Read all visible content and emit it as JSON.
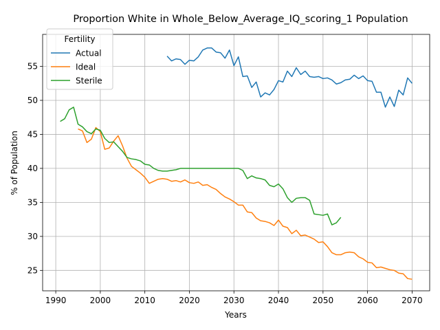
{
  "chart_data": {
    "type": "line",
    "title": "Proportion White in Whole_Below_Average_IQ_scoring_1 Population",
    "xlabel": "Years",
    "ylabel": "% of Population",
    "xlim": [
      1987.05,
      2073.95
    ],
    "ylim": [
      22.0,
      59.7
    ],
    "xticks": [
      1990,
      2000,
      2010,
      2020,
      2030,
      2040,
      2050,
      2060,
      2070
    ],
    "yticks": [
      25,
      30,
      35,
      40,
      45,
      50,
      55
    ],
    "grid": true,
    "legend": {
      "title": "Fertility",
      "placement": "top-left"
    },
    "series": [
      {
        "name": "Actual",
        "color": "#1f77b4",
        "x": [
          2015,
          2016,
          2017,
          2018,
          2019,
          2020,
          2021,
          2022,
          2023,
          2024,
          2025,
          2026,
          2027,
          2028,
          2029,
          2030,
          2031,
          2032,
          2033,
          2034,
          2035,
          2036,
          2037,
          2038,
          2039,
          2040,
          2041,
          2042,
          2043,
          2044,
          2045,
          2046,
          2047,
          2048,
          2049,
          2050,
          2051,
          2052,
          2053,
          2054,
          2055,
          2056,
          2057,
          2058,
          2059,
          2060,
          2061,
          2062,
          2063,
          2064,
          2065,
          2066,
          2067,
          2068,
          2069,
          2070
        ],
        "y": [
          56.5,
          55.8,
          56.1,
          56.0,
          55.3,
          55.9,
          55.8,
          56.4,
          57.4,
          57.7,
          57.7,
          57.1,
          57.0,
          56.2,
          57.4,
          55.1,
          56.4,
          53.5,
          53.6,
          51.9,
          52.7,
          50.5,
          51.1,
          50.8,
          51.6,
          52.9,
          52.7,
          54.3,
          53.5,
          54.8,
          53.8,
          54.3,
          53.5,
          53.4,
          53.5,
          53.2,
          53.3,
          53.0,
          52.4,
          52.6,
          53.0,
          53.1,
          53.7,
          53.2,
          53.6,
          52.9,
          52.8,
          51.2,
          51.2,
          49.0,
          50.5,
          49.1,
          51.5,
          50.8,
          53.3,
          52.5
        ]
      },
      {
        "name": "Ideal",
        "color": "#ff7f0e",
        "x": [
          1995,
          1996,
          1997,
          1998,
          1999,
          2000,
          2001,
          2002,
          2003,
          2004,
          2005,
          2006,
          2007,
          2008,
          2009,
          2010,
          2011,
          2012,
          2013,
          2014,
          2015,
          2016,
          2017,
          2018,
          2019,
          2020,
          2021,
          2022,
          2023,
          2024,
          2025,
          2026,
          2027,
          2028,
          2029,
          2030,
          2031,
          2032,
          2033,
          2034,
          2035,
          2036,
          2037,
          2038,
          2039,
          2040,
          2041,
          2042,
          2043,
          2044,
          2045,
          2046,
          2047,
          2048,
          2049,
          2050,
          2051,
          2052,
          2053,
          2054,
          2055,
          2056,
          2057,
          2058,
          2059,
          2060,
          2061,
          2062,
          2063,
          2064,
          2065,
          2066,
          2067,
          2068,
          2069,
          2070
        ],
        "y": [
          45.8,
          45.5,
          43.8,
          44.3,
          46.0,
          45.4,
          42.8,
          43.0,
          44.0,
          44.8,
          43.3,
          41.5,
          40.3,
          39.8,
          39.3,
          38.7,
          37.8,
          38.1,
          38.4,
          38.5,
          38.4,
          38.1,
          38.2,
          38.0,
          38.3,
          37.9,
          37.8,
          38.0,
          37.5,
          37.6,
          37.2,
          36.9,
          36.3,
          35.8,
          35.5,
          35.1,
          34.6,
          34.6,
          33.6,
          33.5,
          32.7,
          32.3,
          32.2,
          32.0,
          31.6,
          32.4,
          31.5,
          31.3,
          30.4,
          30.9,
          30.1,
          30.2,
          29.9,
          29.6,
          29.1,
          29.2,
          28.5,
          27.6,
          27.3,
          27.3,
          27.6,
          27.7,
          27.6,
          27.0,
          26.7,
          26.2,
          26.1,
          25.4,
          25.5,
          25.3,
          25.1,
          25.0,
          24.6,
          24.5,
          23.8,
          23.7
        ]
      },
      {
        "name": "Sterile",
        "color": "#2ca02c",
        "x": [
          1991,
          1992,
          1993,
          1994,
          1995,
          1996,
          1997,
          1998,
          1999,
          2000,
          2001,
          2002,
          2003,
          2004,
          2005,
          2006,
          2007,
          2008,
          2009,
          2010,
          2011,
          2012,
          2013,
          2014,
          2015,
          2016,
          2017,
          2018,
          2019,
          2020,
          2021,
          2022,
          2023,
          2024,
          2025,
          2026,
          2027,
          2028,
          2029,
          2030,
          2031,
          2032,
          2033,
          2034,
          2035,
          2036,
          2037,
          2038,
          2039,
          2040,
          2041,
          2042,
          2043,
          2044,
          2045,
          2046,
          2047,
          2048,
          2049,
          2050,
          2051,
          2052,
          2053,
          2054
        ],
        "y": [
          46.9,
          47.3,
          48.6,
          49.0,
          46.5,
          46.1,
          45.4,
          45.1,
          45.8,
          45.6,
          44.4,
          43.8,
          43.9,
          43.2,
          42.5,
          41.6,
          41.4,
          41.3,
          41.1,
          40.6,
          40.5,
          40.0,
          39.7,
          39.6,
          39.6,
          39.7,
          39.8,
          40.0,
          40.0,
          40.0,
          40.0,
          40.0,
          40.0,
          40.0,
          40.0,
          40.0,
          40.0,
          40.0,
          40.0,
          40.0,
          40.0,
          39.7,
          38.5,
          38.9,
          38.6,
          38.5,
          38.3,
          37.5,
          37.3,
          37.7,
          37.0,
          35.7,
          35.0,
          35.6,
          35.7,
          35.7,
          35.3,
          33.3,
          33.2,
          33.1,
          33.3,
          31.7,
          32.0,
          32.8
        ]
      }
    ]
  }
}
